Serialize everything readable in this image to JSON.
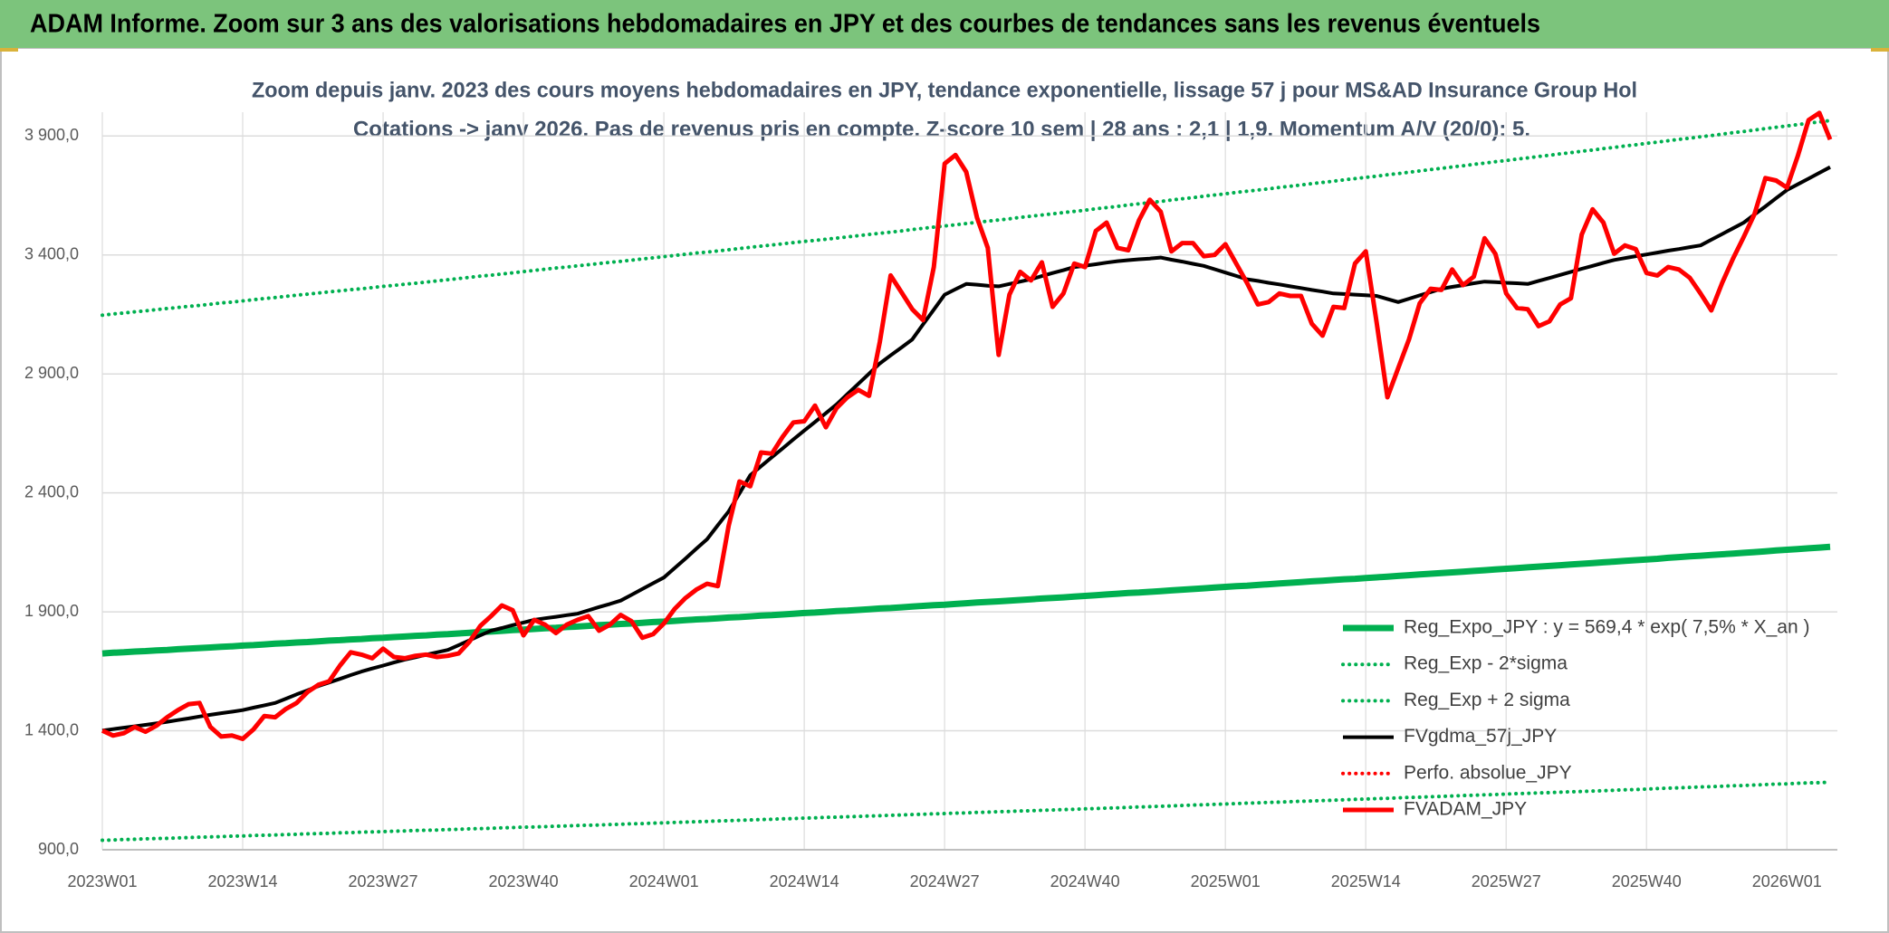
{
  "chart_data": {
    "type": "line",
    "title": "ADAM Informe. Zoom sur 3 ans des valorisations hebdomadaires en JPY et des courbes de tendances sans les revenus éventuels",
    "subtitle": [
      "Zoom depuis janv. 2023 des cours moyens hebdomadaires en JPY, tendance exponentielle, lissage 57 j pour MS&AD Insurance Group Hol",
      "Cotations -> janv 2026. Pas de revenus pris en compte. Z-score 10 sem | 28 ans : 2,1 | 1,9. Momentum A/V (20/0): 5."
    ],
    "categories": [
      "2023W01",
      null,
      null,
      null,
      null,
      null,
      null,
      null,
      null,
      null,
      null,
      null,
      null,
      "2023W14",
      null,
      null,
      null,
      null,
      null,
      null,
      null,
      null,
      null,
      null,
      null,
      null,
      "2023W27",
      null,
      null,
      null,
      null,
      null,
      null,
      null,
      null,
      null,
      null,
      null,
      null,
      "2023W40",
      null,
      null,
      null,
      null,
      null,
      null,
      null,
      null,
      null,
      null,
      null,
      null,
      "2024W01",
      null,
      null,
      null,
      null,
      null,
      null,
      null,
      null,
      null,
      null,
      null,
      null,
      "2024W14",
      null,
      null,
      null,
      null,
      null,
      null,
      null,
      null,
      null,
      null,
      null,
      null,
      "2024W27",
      null,
      null,
      null,
      null,
      null,
      null,
      null,
      null,
      null,
      null,
      null,
      null,
      "2024W40",
      null,
      null,
      null,
      null,
      null,
      null,
      null,
      null,
      null,
      null,
      null,
      null,
      "2025W01",
      null,
      null,
      null,
      null,
      null,
      null,
      null,
      null,
      null,
      null,
      null,
      null,
      "2025W14",
      null,
      null,
      null,
      null,
      null,
      null,
      null,
      null,
      null,
      null,
      null,
      null,
      "2025W27",
      null,
      null,
      null,
      null,
      null,
      null,
      null,
      null,
      null,
      null,
      null,
      null,
      "2025W40",
      null,
      null,
      null,
      null,
      null,
      null,
      null,
      null,
      null,
      null,
      null,
      null,
      "2026W01",
      null,
      null,
      null,
      null
    ],
    "ylim": [
      900,
      4000
    ],
    "yticks": [
      {
        "value": 900,
        "label": "900,0"
      },
      {
        "value": 1400,
        "label": "1 400,0"
      },
      {
        "value": 1900,
        "label": "1 900,0"
      },
      {
        "value": 2400,
        "label": "2 400,0"
      },
      {
        "value": 2900,
        "label": "2 900,0"
      },
      {
        "value": 3400,
        "label": "3 400,0"
      },
      {
        "value": 3900,
        "label": "3 900,0"
      }
    ],
    "grid": true,
    "legend": "lower right",
    "series": [
      {
        "name": "Reg_Expo_JPY : y = 569,4 * exp( 7,5% *  X_an )",
        "color": "#00b050",
        "line_style": "solid",
        "values": [
          1725,
          1728,
          1730,
          1733,
          1735,
          1738,
          1740,
          1743,
          1745,
          1748,
          1750,
          1753,
          1755,
          1758,
          1760,
          1763,
          1766,
          1768,
          1771,
          1773,
          1776,
          1779,
          1781,
          1784,
          1786,
          1789,
          1791,
          1794,
          1796,
          1799,
          1801,
          1804,
          1806,
          1809,
          1812,
          1815,
          1817,
          1820,
          1823,
          1825,
          1828,
          1831,
          1833,
          1836,
          1838,
          1841,
          1844,
          1846,
          1849,
          1851,
          1854,
          1857,
          1859,
          1862,
          1865,
          1868,
          1870,
          1873,
          1876,
          1878,
          1881,
          1884,
          1886,
          1889,
          1892,
          1895,
          1897,
          1900,
          1903,
          1905,
          1908,
          1911,
          1914,
          1916,
          1919,
          1922,
          1925,
          1928,
          1930,
          1933,
          1936,
          1939,
          1942,
          1944,
          1947,
          1950,
          1953,
          1956,
          1958,
          1961,
          1964,
          1967,
          1970,
          1973,
          1976,
          1979,
          1981,
          1984,
          1987,
          1990,
          1993,
          1996,
          1999,
          2002,
          2005,
          2008,
          2010,
          2013,
          2016,
          2019,
          2022,
          2025,
          2028,
          2031,
          2034,
          2037,
          2039,
          2042,
          2045,
          2048,
          2051,
          2054,
          2057,
          2060,
          2063,
          2066,
          2069,
          2072,
          2075,
          2078,
          2081,
          2084,
          2087,
          2090,
          2093,
          2096,
          2099,
          2102,
          2105,
          2108,
          2111,
          2114,
          2117,
          2120,
          2123,
          2127,
          2130,
          2133,
          2136,
          2139,
          2142,
          2145,
          2148,
          2151,
          2154,
          2158,
          2161,
          2164,
          2167,
          2170,
          2173
        ]
      },
      {
        "name": "Reg_Exp - 2*sigma",
        "color": "#00b050",
        "line_style": "dotted",
        "values": [
          940,
          941,
          943,
          944,
          946,
          947,
          948,
          950,
          951,
          953,
          954,
          955,
          957,
          958,
          960,
          961,
          962,
          964,
          965,
          967,
          968,
          969,
          971,
          972,
          974,
          975,
          976,
          978,
          979,
          981,
          982,
          983,
          985,
          986,
          988,
          989,
          990,
          992,
          993,
          995,
          996,
          997,
          999,
          1000,
          1002,
          1003,
          1004,
          1006,
          1007,
          1009,
          1010,
          1012,
          1013,
          1015,
          1016,
          1018,
          1019,
          1021,
          1022,
          1024,
          1025,
          1027,
          1028,
          1030,
          1031,
          1033,
          1034,
          1036,
          1037,
          1039,
          1040,
          1042,
          1043,
          1045,
          1046,
          1048,
          1049,
          1051,
          1052,
          1054,
          1055,
          1057,
          1058,
          1060,
          1061,
          1063,
          1064,
          1066,
          1067,
          1069,
          1070,
          1072,
          1073,
          1075,
          1076,
          1078,
          1080,
          1081,
          1083,
          1084,
          1086,
          1088,
          1089,
          1091,
          1092,
          1094,
          1096,
          1097,
          1099,
          1100,
          1102,
          1104,
          1105,
          1107,
          1108,
          1110,
          1112,
          1113,
          1115,
          1116,
          1118,
          1120,
          1121,
          1123,
          1124,
          1126,
          1128,
          1129,
          1131,
          1132,
          1134,
          1136,
          1137,
          1139,
          1140,
          1142,
          1144,
          1145,
          1147,
          1148,
          1150,
          1152,
          1153,
          1155,
          1157,
          1159,
          1160,
          1162,
          1164,
          1165,
          1167,
          1169,
          1170,
          1172,
          1174,
          1176,
          1177,
          1179,
          1181,
          1182,
          1184
        ]
      },
      {
        "name": "Reg_Exp + 2 sigma",
        "color": "#00b050",
        "line_style": "dotted",
        "values": [
          3147,
          3152,
          3156,
          3161,
          3165,
          3170,
          3175,
          3179,
          3184,
          3188,
          3193,
          3198,
          3202,
          3207,
          3212,
          3217,
          3221,
          3226,
          3231,
          3235,
          3240,
          3245,
          3249,
          3254,
          3258,
          3263,
          3268,
          3272,
          3277,
          3281,
          3286,
          3291,
          3296,
          3301,
          3306,
          3311,
          3315,
          3320,
          3325,
          3330,
          3335,
          3340,
          3345,
          3349,
          3354,
          3359,
          3364,
          3369,
          3373,
          3378,
          3383,
          3388,
          3393,
          3398,
          3403,
          3408,
          3412,
          3417,
          3422,
          3427,
          3432,
          3437,
          3442,
          3447,
          3452,
          3457,
          3461,
          3466,
          3471,
          3476,
          3481,
          3486,
          3491,
          3496,
          3501,
          3507,
          3512,
          3517,
          3522,
          3527,
          3532,
          3537,
          3542,
          3547,
          3552,
          3558,
          3563,
          3568,
          3573,
          3578,
          3583,
          3588,
          3594,
          3599,
          3604,
          3610,
          3615,
          3620,
          3625,
          3631,
          3636,
          3641,
          3647,
          3652,
          3657,
          3663,
          3668,
          3673,
          3678,
          3684,
          3689,
          3694,
          3700,
          3705,
          3710,
          3716,
          3721,
          3726,
          3731,
          3737,
          3742,
          3748,
          3753,
          3759,
          3764,
          3770,
          3775,
          3781,
          3786,
          3792,
          3797,
          3803,
          3808,
          3814,
          3819,
          3825,
          3830,
          3836,
          3841,
          3847,
          3852,
          3858,
          3863,
          3869,
          3874,
          3880,
          3886,
          3891,
          3897,
          3902,
          3908,
          3914,
          3919,
          3925,
          3931,
          3937,
          3942,
          3948,
          3954,
          3959,
          3965
        ]
      },
      {
        "name": "FVgdma_57j_JPY",
        "color": "#000000",
        "line_style": "solid",
        "values": [
          1401,
          1407,
          1413,
          1419,
          1425,
          1431,
          1438,
          1445,
          1452,
          1460,
          1467,
          1474,
          1480,
          1487,
          1497,
          1507,
          1517,
          1535,
          1553,
          1570,
          1588,
          1603,
          1618,
          1634,
          1649,
          1662,
          1674,
          1687,
          1699,
          1709,
          1720,
          1730,
          1740,
          1760,
          1780,
          1801,
          1821,
          1832,
          1844,
          1855,
          1866,
          1873,
          1879,
          1886,
          1892,
          1906,
          1920,
          1933,
          1947,
          1971,
          1996,
          2020,
          2044,
          2084,
          2124,
          2165,
          2205,
          2264,
          2322,
          2398,
          2474,
          2512,
          2550,
          2587,
          2625,
          2662,
          2698,
          2735,
          2772,
          2815,
          2858,
          2901,
          2944,
          2978,
          3011,
          3045,
          3108,
          3170,
          3233,
          3256,
          3278,
          3275,
          3271,
          3268,
          3278,
          3288,
          3298,
          3311,
          3324,
          3336,
          3349,
          3355,
          3361,
          3368,
          3374,
          3378,
          3382,
          3385,
          3389,
          3380,
          3372,
          3363,
          3354,
          3340,
          3326,
          3312,
          3298,
          3291,
          3283,
          3276,
          3268,
          3261,
          3253,
          3246,
          3238,
          3236,
          3233,
          3231,
          3228,
          3215,
          3202,
          3216,
          3230,
          3244,
          3258,
          3266,
          3273,
          3281,
          3288,
          3286,
          3283,
          3281,
          3278,
          3291,
          3303,
          3316,
          3329,
          3342,
          3354,
          3367,
          3379,
          3387,
          3395,
          3402,
          3410,
          3418,
          3425,
          3433,
          3440,
          3464,
          3488,
          3512,
          3536,
          3570,
          3604,
          3639,
          3673,
          3697,
          3721,
          3745,
          3769
        ]
      },
      {
        "name": "Perfo. absolue_JPY",
        "color": "#ff0000",
        "line_style": "dotted",
        "values": [
          null,
          null,
          null,
          null,
          null,
          null,
          null,
          null,
          null,
          null,
          null,
          null,
          null,
          null,
          null,
          null,
          null,
          null,
          null,
          null,
          null,
          null,
          null,
          null,
          null,
          null,
          null,
          null,
          null,
          null,
          null,
          null,
          null,
          null,
          null,
          null,
          null,
          null,
          null,
          null,
          null,
          null,
          null,
          null,
          null,
          null,
          null,
          null,
          null,
          null,
          null,
          null,
          null,
          null,
          null,
          null,
          null,
          null,
          null,
          null,
          null,
          null,
          null,
          null,
          null,
          null,
          null,
          null,
          null,
          null,
          null,
          null,
          null,
          null,
          null,
          null,
          null,
          null,
          null,
          null,
          null,
          null,
          null,
          null,
          null,
          null,
          null,
          null,
          null,
          null,
          null,
          null,
          null,
          null,
          null,
          null,
          null,
          null,
          null,
          null,
          null,
          null,
          null,
          null,
          null,
          null,
          null,
          null,
          null,
          null,
          null,
          null,
          null,
          null,
          null,
          null,
          null,
          null,
          null,
          null,
          null,
          null,
          null,
          null,
          null,
          null,
          null,
          null,
          null,
          null,
          null,
          null,
          null,
          null,
          null,
          null,
          null,
          null,
          null,
          null,
          null,
          null,
          null,
          null,
          null,
          null,
          null,
          null,
          null,
          null,
          null,
          null,
          null,
          null,
          null,
          null,
          null,
          null,
          null,
          null,
          null
        ]
      },
      {
        "name": "FVADAM_JPY",
        "color": "#ff0000",
        "line_style": "solid",
        "values": [
          1401,
          1380,
          1390,
          1416,
          1396,
          1421,
          1457,
          1487,
          1512,
          1517,
          1416,
          1376,
          1380,
          1366,
          1406,
          1462,
          1457,
          1492,
          1517,
          1563,
          1593,
          1608,
          1674,
          1730,
          1720,
          1705,
          1745,
          1710,
          1705,
          1715,
          1720,
          1710,
          1715,
          1725,
          1775,
          1841,
          1882,
          1927,
          1907,
          1801,
          1866,
          1846,
          1811,
          1846,
          1866,
          1882,
          1821,
          1846,
          1887,
          1861,
          1791,
          1806,
          1851,
          1912,
          1958,
          1993,
          2018,
          2008,
          2261,
          2448,
          2428,
          2570,
          2565,
          2636,
          2696,
          2701,
          2767,
          2676,
          2757,
          2802,
          2833,
          2808,
          3035,
          3314,
          3243,
          3172,
          3126,
          3349,
          3784,
          3820,
          3749,
          3557,
          3430,
          2980,
          3233,
          3329,
          3293,
          3369,
          3182,
          3238,
          3364,
          3349,
          3501,
          3536,
          3430,
          3420,
          3546,
          3632,
          3582,
          3415,
          3450,
          3450,
          3395,
          3400,
          3445,
          3364,
          3283,
          3192,
          3202,
          3238,
          3228,
          3228,
          3111,
          3061,
          3182,
          3177,
          3364,
          3415,
          3116,
          2802,
          2924,
          3045,
          3197,
          3258,
          3253,
          3339,
          3273,
          3309,
          3470,
          3405,
          3238,
          3177,
          3172,
          3101,
          3121,
          3192,
          3218,
          3486,
          3592,
          3536,
          3405,
          3440,
          3425,
          3324,
          3314,
          3349,
          3339,
          3304,
          3238,
          3167,
          3283,
          3384,
          3476,
          3572,
          3723,
          3713,
          3683,
          3815,
          3967,
          3997,
          3885
        ]
      }
    ]
  }
}
